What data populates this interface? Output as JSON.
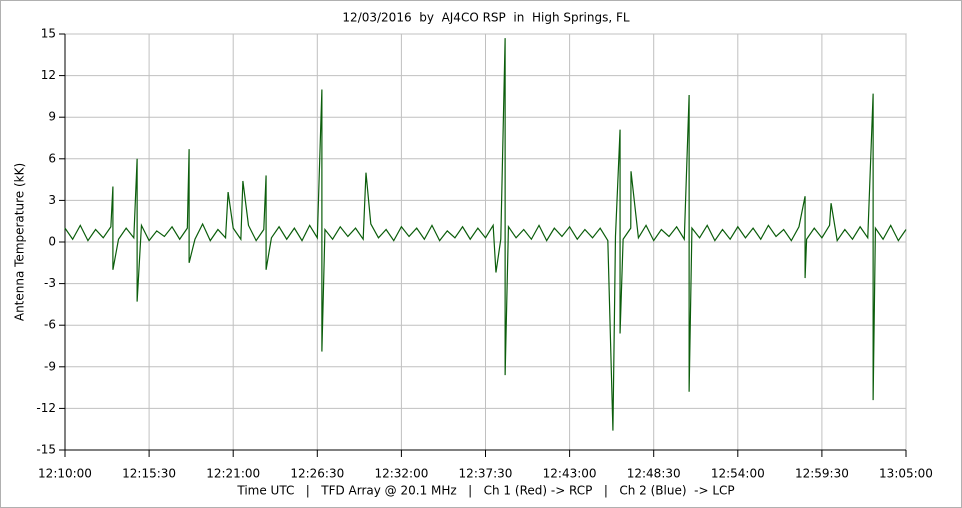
{
  "chart_data": {
    "type": "line",
    "title": "12/03/2016  by  AJ4CO RSP  in  High Springs, FL",
    "y_label": "Antenna Temperature (kK)",
    "x_label": "Time UTC   |   TFD Array @ 20.1 MHz   |   Ch 1 (Red) -> RCP   |   Ch 2 (Blue)  -> LCP",
    "color": "#0b5d0b",
    "grid": true,
    "ylim": [
      -15,
      15
    ],
    "yticks": [
      -15,
      -12,
      -9,
      -6,
      -3,
      0,
      3,
      6,
      9,
      12,
      15
    ],
    "xlim": [
      "12:10:00",
      "13:05:00"
    ],
    "xticks": [
      "12:10:00",
      "12:15:30",
      "12:21:00",
      "12:26:30",
      "12:32:00",
      "12:37:30",
      "12:43:00",
      "12:48:30",
      "12:54:00",
      "12:59:30",
      "13:05:00"
    ],
    "x": [
      "12:10:00",
      "12:10:30",
      "12:11:00",
      "12:11:30",
      "12:12:00",
      "12:12:30",
      "12:13:00",
      "12:13:08",
      "12:13:08",
      "12:13:30",
      "12:14:00",
      "12:14:30",
      "12:14:43",
      "12:14:43",
      "12:15:00",
      "12:15:30",
      "12:16:00",
      "12:16:30",
      "12:17:00",
      "12:17:30",
      "12:18:00",
      "12:18:07",
      "12:18:07",
      "12:18:30",
      "12:19:00",
      "12:19:30",
      "12:20:00",
      "12:20:30",
      "12:20:40",
      "12:21:00",
      "12:21:30",
      "12:21:38",
      "12:22:00",
      "12:22:30",
      "12:23:00",
      "12:23:09",
      "12:23:09",
      "12:23:30",
      "12:24:00",
      "12:24:30",
      "12:25:00",
      "12:25:30",
      "12:26:00",
      "12:26:30",
      "12:26:48",
      "12:26:48",
      "12:27:00",
      "12:27:30",
      "12:28:00",
      "12:28:30",
      "12:29:00",
      "12:29:30",
      "12:29:41",
      "12:30:00",
      "12:30:30",
      "12:31:00",
      "12:31:30",
      "12:32:00",
      "12:32:30",
      "12:33:00",
      "12:33:30",
      "12:34:00",
      "12:34:30",
      "12:35:00",
      "12:35:30",
      "12:36:00",
      "12:36:30",
      "12:37:00",
      "12:37:30",
      "12:38:00",
      "12:38:11",
      "12:38:30",
      "12:38:47",
      "12:38:47",
      "12:39:00",
      "12:39:30",
      "12:40:00",
      "12:40:30",
      "12:41:00",
      "12:41:30",
      "12:42:00",
      "12:42:30",
      "12:43:00",
      "12:43:30",
      "12:44:00",
      "12:44:30",
      "12:45:00",
      "12:45:30",
      "12:45:50",
      "12:46:00",
      "12:46:18",
      "12:46:18",
      "12:46:30",
      "12:47:00",
      "12:47:01",
      "12:47:30",
      "12:48:00",
      "12:48:30",
      "12:49:00",
      "12:49:30",
      "12:50:00",
      "12:50:30",
      "12:50:49",
      "12:50:49",
      "12:51:00",
      "12:51:30",
      "12:52:00",
      "12:52:30",
      "12:53:00",
      "12:53:30",
      "12:54:00",
      "12:54:30",
      "12:55:00",
      "12:55:30",
      "12:56:00",
      "12:56:30",
      "12:57:00",
      "12:57:30",
      "12:58:00",
      "12:58:24",
      "12:58:24",
      "12:58:30",
      "12:59:00",
      "12:59:30",
      "13:00:00",
      "13:00:06",
      "13:00:30",
      "13:01:00",
      "13:01:30",
      "13:02:00",
      "13:02:30",
      "13:02:51",
      "13:02:51",
      "13:03:00",
      "13:03:30",
      "13:04:00",
      "13:04:30",
      "13:05:00"
    ],
    "values": [
      1.0,
      0.2,
      1.2,
      0.1,
      0.9,
      0.3,
      1.1,
      4.0,
      -2.0,
      0.2,
      1.0,
      0.3,
      6.0,
      -4.3,
      1.2,
      0.1,
      0.8,
      0.4,
      1.1,
      0.2,
      1.0,
      6.7,
      -1.5,
      0.2,
      1.3,
      0.1,
      0.9,
      0.3,
      3.6,
      1.0,
      0.2,
      4.4,
      1.2,
      0.1,
      0.9,
      4.8,
      -2.0,
      0.3,
      1.1,
      0.2,
      1.0,
      0.1,
      1.2,
      0.3,
      11.0,
      -7.9,
      0.9,
      0.2,
      1.1,
      0.4,
      1.0,
      0.2,
      5.0,
      1.3,
      0.3,
      0.9,
      0.1,
      1.1,
      0.4,
      1.0,
      0.2,
      1.2,
      0.1,
      0.8,
      0.3,
      1.1,
      0.2,
      1.0,
      0.3,
      1.2,
      -2.2,
      0.2,
      14.7,
      -9.6,
      1.1,
      0.3,
      0.9,
      0.2,
      1.2,
      0.1,
      1.0,
      0.4,
      1.1,
      0.2,
      0.9,
      0.3,
      1.0,
      0.1,
      -13.6,
      0.4,
      8.1,
      -6.6,
      0.2,
      1.0,
      5.1,
      0.3,
      1.2,
      0.1,
      0.9,
      0.4,
      1.1,
      0.2,
      10.6,
      -10.8,
      1.0,
      0.3,
      1.2,
      0.1,
      0.9,
      0.2,
      1.1,
      0.3,
      1.0,
      0.2,
      1.2,
      0.4,
      0.9,
      0.1,
      1.1,
      3.3,
      -2.6,
      0.2,
      1.0,
      0.3,
      1.2,
      2.8,
      0.1,
      0.9,
      0.2,
      1.1,
      0.3,
      10.7,
      -11.4,
      1.0,
      0.2,
      1.2,
      0.1,
      0.9
    ]
  }
}
